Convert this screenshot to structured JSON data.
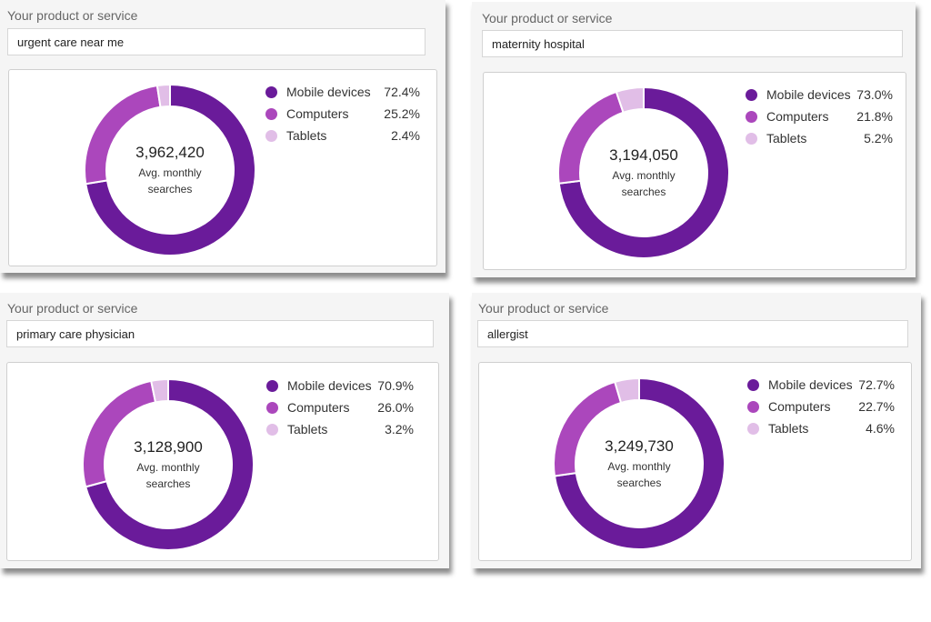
{
  "colors": {
    "mobile": "#6a1b9a",
    "computers": "#ab47bc",
    "tablets": "#e1bee7"
  },
  "panels": [
    {
      "field_label": "Your product or service",
      "field_value": "urgent care near me",
      "total": "3,962,420",
      "total_caption_1": "Avg. monthly",
      "total_caption_2": "searches"
    },
    {
      "field_label": "Your product or service",
      "field_value": "maternity hospital",
      "total": "3,194,050",
      "total_caption_1": "Avg. monthly",
      "total_caption_2": "searches"
    },
    {
      "field_label": "Your product or service",
      "field_value": "primary care physician",
      "total": "3,128,900",
      "total_caption_1": "Avg. monthly",
      "total_caption_2": "searches"
    },
    {
      "field_label": "Your product or service",
      "field_value": "allergist",
      "total": "3,249,730",
      "total_caption_1": "Avg. monthly",
      "total_caption_2": "searches"
    }
  ],
  "chart_data": [
    {
      "type": "pie",
      "labels": [
        "Mobile devices",
        "Computers",
        "Tablets"
      ],
      "values": [
        72.4,
        25.2,
        2.4
      ],
      "value_labels": [
        "72.4%",
        "25.2%",
        "2.4%"
      ],
      "legend_position": "right"
    },
    {
      "type": "pie",
      "labels": [
        "Mobile devices",
        "Computers",
        "Tablets"
      ],
      "values": [
        73.0,
        21.8,
        5.2
      ],
      "value_labels": [
        "73.0%",
        "21.8%",
        "5.2%"
      ],
      "legend_position": "right"
    },
    {
      "type": "pie",
      "labels": [
        "Mobile devices",
        "Computers",
        "Tablets"
      ],
      "values": [
        70.9,
        26.0,
        3.2
      ],
      "value_labels": [
        "70.9%",
        "26.0%",
        "3.2%"
      ],
      "legend_position": "right"
    },
    {
      "type": "pie",
      "labels": [
        "Mobile devices",
        "Computers",
        "Tablets"
      ],
      "values": [
        72.7,
        22.7,
        4.6
      ],
      "value_labels": [
        "72.7%",
        "22.7%",
        "4.6%"
      ],
      "legend_position": "right"
    }
  ]
}
